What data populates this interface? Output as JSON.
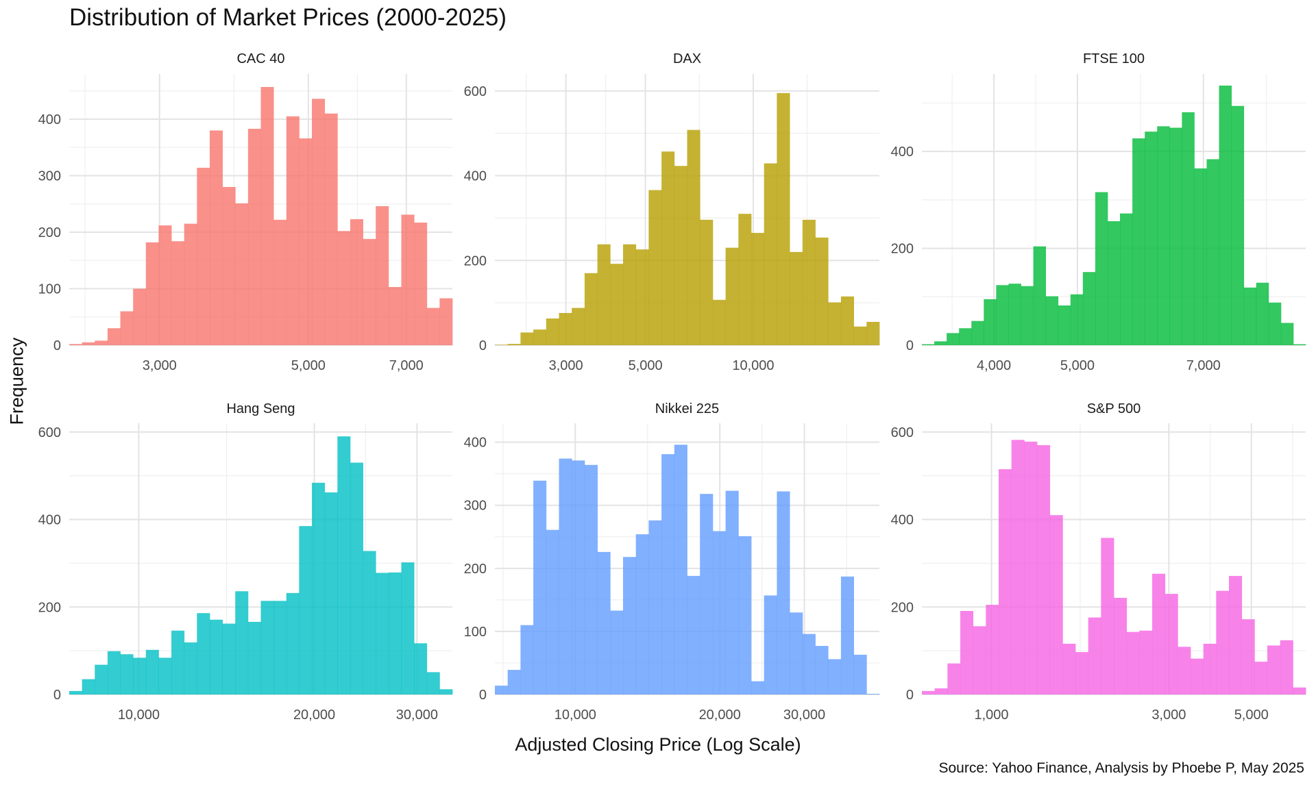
{
  "title": "Distribution of Market Prices (2000-2025)",
  "ylabel": "Frequency",
  "xlabel": "Adjusted Closing Price (Log Scale)",
  "caption": "Source: Yahoo Finance, Analysis by Phoebe P, May 2025",
  "chart_data": {
    "type": "bar",
    "subtype": "faceted histogram",
    "x_scale": "log",
    "grid": true,
    "legend": "none",
    "panels": [
      {
        "name": "CAC 40",
        "color": "#F8766D",
        "x_range": [
          2200,
          8200
        ],
        "y_range": [
          0,
          480
        ],
        "y_ticks": [
          0,
          100,
          200,
          300,
          400
        ],
        "x_ticks": [
          3000,
          5000,
          7000
        ],
        "x_tick_labels": [
          "3,000",
          "5,000",
          "7,000"
        ],
        "counts": [
          2,
          5,
          8,
          30,
          60,
          100,
          182,
          212,
          184,
          215,
          314,
          380,
          280,
          251,
          383,
          457,
          222,
          405,
          366,
          436,
          410,
          202,
          223,
          188,
          246,
          103,
          231,
          217,
          66,
          83
        ]
      },
      {
        "name": "DAX",
        "color": "#B79F00",
        "x_range": [
          1900,
          22500
        ],
        "y_range": [
          0,
          640
        ],
        "y_ticks": [
          0,
          200,
          400,
          600
        ],
        "x_ticks": [
          3000,
          5000,
          10000
        ],
        "x_tick_labels": [
          "3,000",
          "5,000",
          "10,000"
        ],
        "counts": [
          1,
          3,
          30,
          37,
          63,
          76,
          88,
          170,
          238,
          192,
          238,
          226,
          366,
          457,
          423,
          508,
          296,
          107,
          230,
          310,
          265,
          429,
          595,
          220,
          296,
          254,
          101,
          115,
          44,
          55
        ]
      },
      {
        "name": "FTSE 100",
        "color": "#00BA38",
        "x_range": [
          3300,
          9200
        ],
        "y_range": [
          0,
          560
        ],
        "y_ticks": [
          0,
          200,
          400
        ],
        "x_ticks": [
          4000,
          5000,
          7000
        ],
        "x_tick_labels": [
          "4,000",
          "5,000",
          "7,000"
        ],
        "counts": [
          2,
          8,
          25,
          35,
          50,
          95,
          124,
          127,
          122,
          204,
          101,
          82,
          105,
          151,
          316,
          256,
          272,
          427,
          441,
          452,
          449,
          481,
          365,
          384,
          536,
          494,
          119,
          129,
          88,
          46,
          2
        ]
      },
      {
        "name": "Hang Seng",
        "color": "#00BFC4",
        "x_range": [
          7600,
          34500
        ],
        "y_range": [
          0,
          620
        ],
        "y_ticks": [
          0,
          200,
          400,
          600
        ],
        "x_ticks": [
          10000,
          20000,
          30000
        ],
        "x_tick_labels": [
          "10,000",
          "20,000",
          "30,000"
        ],
        "counts": [
          8,
          35,
          68,
          99,
          92,
          84,
          102,
          84,
          146,
          119,
          186,
          171,
          162,
          236,
          166,
          214,
          214,
          232,
          385,
          484,
          462,
          590,
          530,
          328,
          278,
          279,
          302,
          117,
          51,
          12
        ]
      },
      {
        "name": "Nikkei 225",
        "color": "#619CFF",
        "x_range": [
          6800,
          43000
        ],
        "y_range": [
          0,
          430
        ],
        "y_ticks": [
          0,
          100,
          200,
          300,
          400
        ],
        "x_ticks": [
          10000,
          20000,
          30000
        ],
        "x_tick_labels": [
          "10,000",
          "20,000",
          "30,000"
        ],
        "counts": [
          14,
          39,
          110,
          339,
          261,
          374,
          371,
          364,
          226,
          133,
          218,
          254,
          276,
          381,
          396,
          188,
          318,
          259,
          323,
          251,
          21,
          157,
          322,
          130,
          96,
          77,
          56,
          187,
          63,
          1
        ]
      },
      {
        "name": "S&P 500",
        "color": "#F564E3",
        "x_range": [
          650,
          7000
        ],
        "y_range": [
          0,
          620
        ],
        "y_ticks": [
          0,
          200,
          400,
          600
        ],
        "x_ticks": [
          1000,
          3000,
          5000
        ],
        "x_tick_labels": [
          "1,000",
          "3,000",
          "5,000"
        ],
        "counts": [
          8,
          14,
          71,
          191,
          156,
          205,
          515,
          582,
          578,
          570,
          410,
          116,
          97,
          176,
          358,
          221,
          143,
          146,
          276,
          230,
          109,
          82,
          116,
          237,
          271,
          172,
          75,
          112,
          124,
          16
        ]
      }
    ]
  }
}
